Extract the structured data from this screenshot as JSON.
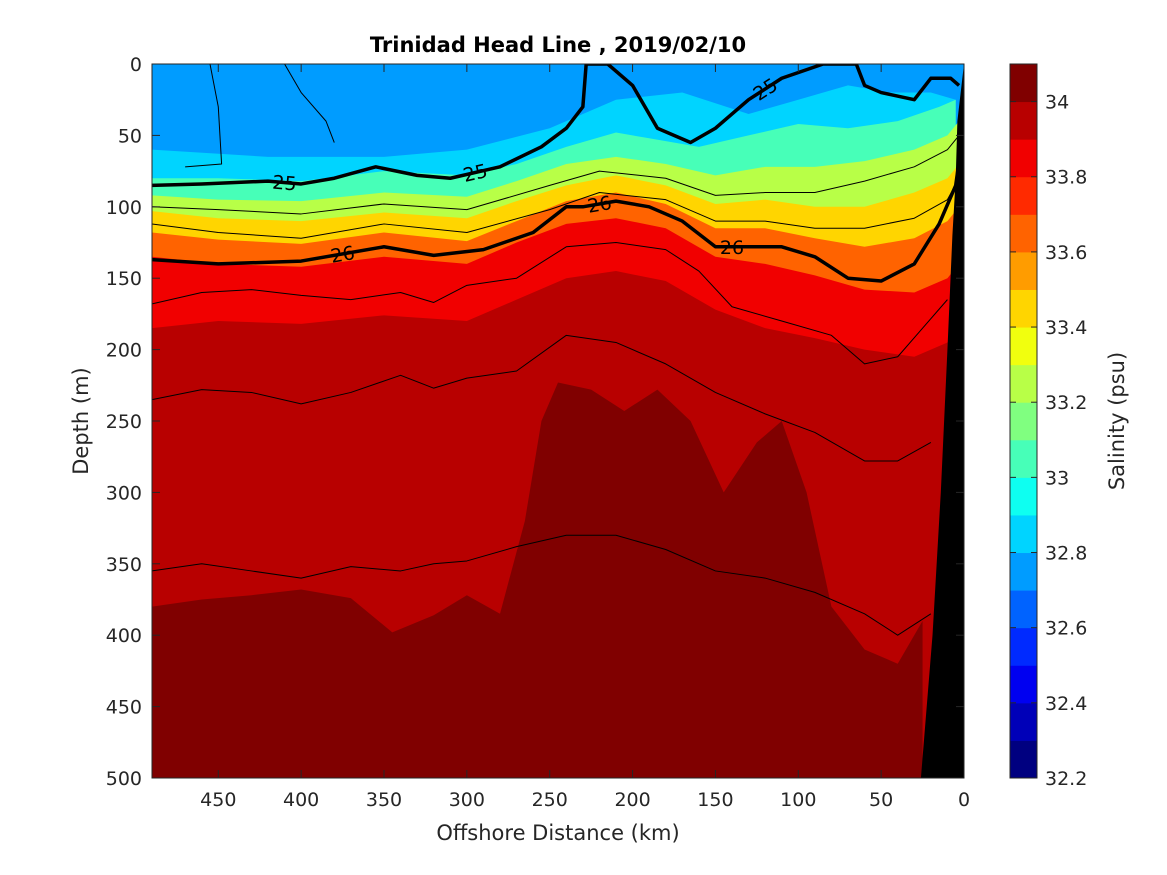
{
  "chart_data": {
    "type": "heatmap",
    "title": "Trinidad Head Line , 2019/02/10",
    "xlabel": "Offshore Distance (km)",
    "ylabel": "Depth (m)",
    "colorbar_label": "Salinity (psu)",
    "xlim": [
      490,
      0
    ],
    "ylim": [
      500,
      0
    ],
    "x_reversed": true,
    "y_reversed": true,
    "xticks": [
      450,
      400,
      350,
      300,
      250,
      200,
      150,
      100,
      50,
      0
    ],
    "yticks": [
      0,
      50,
      100,
      150,
      200,
      250,
      300,
      350,
      400,
      450,
      500
    ],
    "colorbar_ticks": [
      32.2,
      32.4,
      32.6,
      32.8,
      33,
      33.2,
      33.4,
      33.6,
      33.8,
      34
    ],
    "colorbar_range": [
      32.2,
      34.1
    ],
    "colorbar_levels": 19,
    "colormap": "jet",
    "grid": false,
    "salinity_zone_boundaries": [
      {
        "level": 32.8,
        "x": [
          490,
          420,
          350,
          300,
          250,
          210,
          170,
          130,
          100,
          70,
          45,
          20,
          5
        ],
        "depth": [
          60,
          65,
          65,
          60,
          45,
          25,
          20,
          35,
          25,
          15,
          20,
          20,
          25
        ]
      },
      {
        "level": 33.0,
        "x": [
          490,
          450,
          400,
          350,
          300,
          270,
          240,
          210,
          190,
          160,
          130,
          100,
          70,
          40,
          15,
          5
        ],
        "depth": [
          80,
          80,
          82,
          75,
          78,
          70,
          58,
          48,
          52,
          58,
          50,
          42,
          45,
          40,
          30,
          25
        ]
      },
      {
        "level": 33.2,
        "x": [
          490,
          450,
          400,
          350,
          300,
          270,
          240,
          210,
          180,
          150,
          120,
          90,
          60,
          30,
          10,
          3
        ],
        "depth": [
          92,
          95,
          96,
          90,
          93,
          82,
          70,
          65,
          70,
          78,
          72,
          72,
          68,
          60,
          50,
          40
        ]
      },
      {
        "level": 33.4,
        "x": [
          490,
          450,
          400,
          350,
          300,
          270,
          240,
          210,
          180,
          150,
          120,
          90,
          60,
          30,
          10,
          3
        ],
        "depth": [
          103,
          108,
          110,
          104,
          108,
          96,
          85,
          78,
          85,
          98,
          95,
          100,
          100,
          90,
          80,
          70
        ]
      },
      {
        "level": 33.6,
        "x": [
          490,
          450,
          400,
          350,
          300,
          270,
          240,
          210,
          180,
          150,
          120,
          90,
          60,
          30,
          10,
          3
        ],
        "depth": [
          118,
          123,
          126,
          118,
          124,
          110,
          96,
          90,
          98,
          115,
          115,
          122,
          128,
          122,
          110,
          100
        ]
      },
      {
        "level": 33.8,
        "x": [
          490,
          450,
          400,
          350,
          300,
          270,
          240,
          210,
          180,
          150,
          120,
          90,
          60,
          30,
          10,
          3
        ],
        "depth": [
          135,
          140,
          142,
          135,
          140,
          125,
          112,
          108,
          115,
          135,
          140,
          148,
          158,
          160,
          150,
          140
        ]
      },
      {
        "level": 33.9,
        "x": [
          490,
          450,
          400,
          350,
          300,
          270,
          240,
          210,
          180,
          150,
          120,
          90,
          60,
          30,
          10,
          3
        ],
        "depth": [
          185,
          180,
          182,
          176,
          180,
          165,
          150,
          145,
          152,
          172,
          185,
          192,
          200,
          205,
          195,
          185
        ]
      },
      {
        "level": 34.0,
        "x": [
          490,
          460,
          430,
          400,
          370,
          345,
          320,
          300,
          280,
          265,
          255,
          245,
          225,
          205,
          185,
          165,
          145,
          125,
          110,
          95,
          80,
          60,
          40,
          25
        ],
        "depth": [
          380,
          375,
          372,
          368,
          374,
          398,
          386,
          372,
          385,
          320,
          250,
          223,
          228,
          243,
          228,
          250,
          300,
          265,
          250,
          300,
          380,
          410,
          420,
          390
        ]
      }
    ],
    "density_contours": [
      {
        "label": "",
        "x": [
          410,
          400,
          385,
          380
        ],
        "depth": [
          0,
          20,
          40,
          55
        ]
      },
      {
        "label": "",
        "x": [
          455,
          450,
          448,
          470
        ],
        "depth": [
          0,
          30,
          70,
          72
        ]
      },
      {
        "label": "25",
        "bold": true,
        "x": [
          490,
          460,
          420,
          400,
          380,
          355,
          330,
          310,
          280,
          255,
          240,
          230,
          228,
          215,
          200,
          185,
          165,
          150,
          130,
          110,
          85,
          65,
          60,
          50,
          30,
          20,
          8,
          3
        ],
        "depth": [
          85,
          84,
          82,
          84,
          80,
          72,
          78,
          80,
          72,
          58,
          45,
          30,
          0,
          0,
          15,
          45,
          55,
          45,
          25,
          10,
          0,
          0,
          15,
          20,
          25,
          10,
          10,
          15
        ]
      },
      {
        "label": "",
        "x": [
          490,
          450,
          400,
          350,
          300,
          250,
          220,
          180,
          150,
          120,
          90,
          60,
          30,
          10,
          3
        ],
        "depth": [
          100,
          102,
          105,
          98,
          102,
          85,
          75,
          80,
          92,
          90,
          90,
          82,
          72,
          60,
          50
        ]
      },
      {
        "label": "",
        "x": [
          490,
          450,
          400,
          350,
          300,
          250,
          220,
          180,
          150,
          120,
          90,
          60,
          30,
          10,
          3
        ],
        "depth": [
          112,
          118,
          122,
          112,
          118,
          102,
          90,
          95,
          110,
          110,
          115,
          115,
          108,
          95,
          80
        ]
      },
      {
        "label": "26",
        "bold": true,
        "x": [
          490,
          450,
          400,
          350,
          320,
          290,
          260,
          240,
          230,
          210,
          190,
          170,
          150,
          130,
          110,
          90,
          70,
          50,
          30,
          15,
          5,
          2
        ],
        "depth": [
          137,
          140,
          138,
          128,
          134,
          130,
          118,
          100,
          100,
          96,
          100,
          110,
          128,
          128,
          128,
          135,
          150,
          152,
          140,
          112,
          85,
          60
        ]
      },
      {
        "label": "",
        "x": [
          490,
          460,
          430,
          400,
          370,
          340,
          320,
          300,
          270,
          240,
          210,
          180,
          160,
          140,
          110,
          80,
          60,
          40,
          25,
          10
        ],
        "depth": [
          168,
          160,
          158,
          162,
          165,
          160,
          167,
          155,
          150,
          128,
          125,
          130,
          145,
          170,
          180,
          190,
          210,
          205,
          185,
          165
        ]
      },
      {
        "label": "",
        "x": [
          490,
          460,
          430,
          400,
          370,
          340,
          320,
          300,
          270,
          240,
          210,
          180,
          150,
          120,
          90,
          60,
          40,
          20
        ],
        "depth": [
          235,
          228,
          230,
          238,
          230,
          218,
          227,
          220,
          215,
          190,
          195,
          210,
          230,
          245,
          258,
          278,
          278,
          265
        ]
      },
      {
        "label": "",
        "x": [
          490,
          460,
          430,
          400,
          370,
          340,
          320,
          300,
          270,
          240,
          210,
          180,
          150,
          120,
          90,
          60,
          40,
          20
        ],
        "depth": [
          355,
          350,
          355,
          360,
          352,
          355,
          350,
          348,
          338,
          330,
          330,
          340,
          355,
          360,
          370,
          385,
          400,
          385
        ]
      }
    ],
    "land_mask_top_x_at_depth": [
      [
        0,
        0
      ],
      [
        40,
        4
      ],
      [
        80,
        5
      ],
      [
        120,
        7
      ],
      [
        200,
        10
      ],
      [
        300,
        14
      ],
      [
        400,
        19
      ],
      [
        500,
        26
      ]
    ]
  }
}
